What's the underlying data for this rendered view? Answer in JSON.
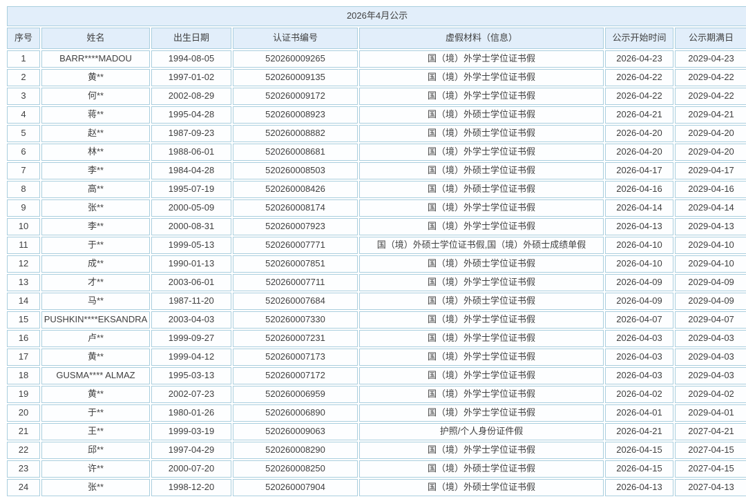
{
  "table": {
    "title": "2026年4月公示",
    "columns": [
      "序号",
      "姓名",
      "出生日期",
      "认证书编号",
      "虚假材料（信息）",
      "公示开始时间",
      "公示期满日"
    ],
    "column_keys": [
      "index",
      "name",
      "birth-date",
      "certificate-no",
      "fake-material",
      "publicity-start-date",
      "publicity-expiry-date"
    ],
    "rows": [
      [
        "1",
        "BARR****MADOU",
        "1994-08-05",
        "520260009265",
        "国（境）外学士学位证书假",
        "2026-04-23",
        "2029-04-23"
      ],
      [
        "2",
        "黄**",
        "1997-01-02",
        "520260009135",
        "国（境）外学士学位证书假",
        "2026-04-22",
        "2029-04-22"
      ],
      [
        "3",
        "何**",
        "2002-08-29",
        "520260009172",
        "国（境）外学士学位证书假",
        "2026-04-22",
        "2029-04-22"
      ],
      [
        "4",
        "蒋**",
        "1995-04-28",
        "520260008923",
        "国（境）外硕士学位证书假",
        "2026-04-21",
        "2029-04-21"
      ],
      [
        "5",
        "赵**",
        "1987-09-23",
        "520260008882",
        "国（境）外硕士学位证书假",
        "2026-04-20",
        "2029-04-20"
      ],
      [
        "6",
        "林**",
        "1988-06-01",
        "520260008681",
        "国（境）外学士学位证书假",
        "2026-04-20",
        "2029-04-20"
      ],
      [
        "7",
        "李**",
        "1984-04-28",
        "520260008503",
        "国（境）外硕士学位证书假",
        "2026-04-17",
        "2029-04-17"
      ],
      [
        "8",
        "高**",
        "1995-07-19",
        "520260008426",
        "国（境）外硕士学位证书假",
        "2026-04-16",
        "2029-04-16"
      ],
      [
        "9",
        "张**",
        "2000-05-09",
        "520260008174",
        "国（境）外学士学位证书假",
        "2026-04-14",
        "2029-04-14"
      ],
      [
        "10",
        "李**",
        "2000-08-31",
        "520260007923",
        "国（境）外学士学位证书假",
        "2026-04-13",
        "2029-04-13"
      ],
      [
        "11",
        "于**",
        "1999-05-13",
        "520260007771",
        "国（境）外硕士学位证书假,国（境）外硕士成绩单假",
        "2026-04-10",
        "2029-04-10"
      ],
      [
        "12",
        "成**",
        "1990-01-13",
        "520260007851",
        "国（境）外硕士学位证书假",
        "2026-04-10",
        "2029-04-10"
      ],
      [
        "13",
        "才**",
        "2003-06-01",
        "520260007711",
        "国（境）外学士学位证书假",
        "2026-04-09",
        "2029-04-09"
      ],
      [
        "14",
        "马**",
        "1987-11-20",
        "520260007684",
        "国（境）外硕士学位证书假",
        "2026-04-09",
        "2029-04-09"
      ],
      [
        "15",
        "PUSHKIN****EKSANDRA",
        "2003-04-03",
        "520260007330",
        "国（境）外学士学位证书假",
        "2026-04-07",
        "2029-04-07"
      ],
      [
        "16",
        "卢**",
        "1999-09-27",
        "520260007231",
        "国（境）外学士学位证书假",
        "2026-04-03",
        "2029-04-03"
      ],
      [
        "17",
        "黄**",
        "1999-04-12",
        "520260007173",
        "国（境）外学士学位证书假",
        "2026-04-03",
        "2029-04-03"
      ],
      [
        "18",
        "GUSMA**** ALMAZ",
        "1995-03-13",
        "520260007172",
        "国（境）外学士学位证书假",
        "2026-04-03",
        "2029-04-03"
      ],
      [
        "19",
        "黄**",
        "2002-07-23",
        "520260006959",
        "国（境）外学士学位证书假",
        "2026-04-02",
        "2029-04-02"
      ],
      [
        "20",
        "于**",
        "1980-01-26",
        "520260006890",
        "国（境）外学士学位证书假",
        "2026-04-01",
        "2029-04-01"
      ],
      [
        "21",
        "王**",
        "1999-03-19",
        "520260009063",
        "护照/个人身份证件假",
        "2026-04-21",
        "2027-04-21"
      ],
      [
        "22",
        "邱**",
        "1997-04-29",
        "520260008290",
        "国（境）外学士学位证书假",
        "2026-04-15",
        "2027-04-15"
      ],
      [
        "23",
        "许**",
        "2000-07-20",
        "520260008250",
        "国（境）外硕士学位证书假",
        "2026-04-15",
        "2027-04-15"
      ],
      [
        "24",
        "张**",
        "1998-12-20",
        "520260007904",
        "国（境）外硕士学位证书假",
        "2026-04-13",
        "2027-04-13"
      ]
    ],
    "colors": {
      "header_bg": "#e2eefa",
      "cell_bg": "#fdfeff",
      "border": "#a9cede",
      "text": "#3f3f3f"
    }
  }
}
